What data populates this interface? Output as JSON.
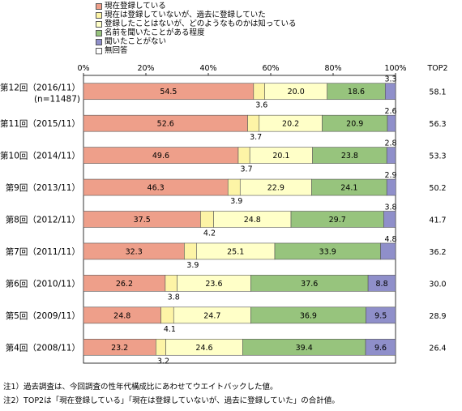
{
  "legend": [
    {
      "label": "現在登録している",
      "color": "#ee9f8a"
    },
    {
      "label": "現在は登録していないが、過去に登録していた",
      "color": "#fdf4a6"
    },
    {
      "label": "登録したことはないが、どのようなものかは知っている",
      "color": "#ffffc8"
    },
    {
      "label": "名前を聞いたことがある程度",
      "color": "#97c47d"
    },
    {
      "label": "聞いたことがない",
      "color": "#8f8fca"
    },
    {
      "label": "無回答",
      "color": "#ffffff"
    }
  ],
  "notes": {
    "note1": "注1）過去調査は、今回調査の性年代構成比にあわせてウエイトバックした値。",
    "note2": "注2）TOP2は「現在登録している」「現在は登録していないが、過去に登録していた」の合計値。"
  },
  "chart_data": {
    "type": "bar",
    "orientation": "horizontal",
    "stacked": true,
    "xlim": [
      0,
      100
    ],
    "x_ticks": [
      "0%",
      "20%",
      "40%",
      "60%",
      "80%",
      "100%"
    ],
    "extra_column_label": "TOP2",
    "categories": [
      {
        "label": "第12回（2016/11）",
        "sublabel": "(n=11487)"
      },
      {
        "label": "第11回（2015/11）",
        "sublabel": ""
      },
      {
        "label": "第10回（2014/11）",
        "sublabel": ""
      },
      {
        "label": "第9回（2013/11）",
        "sublabel": ""
      },
      {
        "label": "第8回（2012/11）",
        "sublabel": ""
      },
      {
        "label": "第7回（2011/11）",
        "sublabel": ""
      },
      {
        "label": "第6回（2010/11）",
        "sublabel": ""
      },
      {
        "label": "第5回（2009/11）",
        "sublabel": ""
      },
      {
        "label": "第4回（2008/11）",
        "sublabel": ""
      }
    ],
    "series": [
      {
        "name": "現在登録している",
        "values": [
          54.5,
          52.6,
          49.6,
          46.3,
          37.5,
          32.3,
          26.2,
          24.8,
          23.2
        ]
      },
      {
        "name": "現在は登録していないが、過去に登録していた",
        "values": [
          3.6,
          3.7,
          3.7,
          3.9,
          4.2,
          3.9,
          3.8,
          4.1,
          3.2
        ]
      },
      {
        "name": "登録したことはないが、どのようなものかは知っている",
        "values": [
          20.0,
          20.2,
          20.1,
          22.9,
          24.8,
          25.1,
          23.6,
          24.7,
          24.6
        ]
      },
      {
        "name": "名前を聞いたことがある程度",
        "values": [
          18.6,
          20.9,
          23.8,
          24.1,
          29.7,
          33.9,
          37.6,
          36.9,
          39.4
        ]
      },
      {
        "name": "聞いたことがない",
        "values": [
          3.3,
          2.6,
          2.8,
          2.9,
          3.8,
          4.8,
          8.8,
          9.5,
          9.6
        ]
      },
      {
        "name": "無回答",
        "values": [
          0,
          0,
          0,
          0,
          0,
          0,
          0,
          0,
          0
        ]
      }
    ],
    "labels": {
      "s0": [
        "54.5",
        "52.6",
        "49.6",
        "46.3",
        "37.5",
        "32.3",
        "26.2",
        "24.8",
        "23.2"
      ],
      "s1": [
        "3.6",
        "3.7",
        "3.7",
        "3.9",
        "4.2",
        "3.9",
        "3.8",
        "4.1",
        "3.2"
      ],
      "s2": [
        "20.0",
        "20.2",
        "20.1",
        "22.9",
        "24.8",
        "25.1",
        "23.6",
        "24.7",
        "24.6"
      ],
      "s3": [
        "18.6",
        "20.9",
        "23.8",
        "24.1",
        "29.7",
        "33.9",
        "37.6",
        "36.9",
        "39.4"
      ],
      "s4": [
        "3.3",
        "2.6",
        "2.8",
        "2.9",
        "3.8",
        "4.8",
        "8.8",
        "9.5",
        "9.6"
      ]
    },
    "top2": [
      "58.1",
      "56.3",
      "53.3",
      "50.2",
      "41.7",
      "36.2",
      "30.0",
      "28.9",
      "26.4"
    ]
  }
}
